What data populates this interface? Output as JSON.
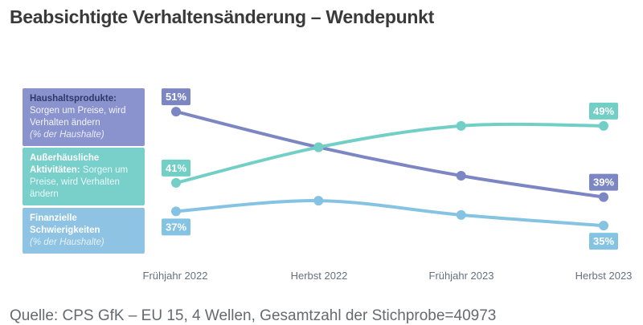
{
  "page": {
    "title": "Beabsichtigte Verhaltensänderung – Wendepunkt"
  },
  "legend": {
    "items": [
      {
        "title": "Haushaltsprodukte:",
        "body": "Sorgen um Preise, wird Verhalten ändern",
        "note": "(% der Haushalte)",
        "bg": "#8a93cd",
        "title_color": "#2e3a6b",
        "text_color": "#f2f4fb"
      },
      {
        "title": "Außerhäusliche Aktivitäten:",
        "body": "Sorgen um Preise, wird Verhalten ändern",
        "note": "",
        "bg": "#79cfca",
        "title_color": "#ffffff",
        "text_color": "#eafaf9"
      },
      {
        "title": "Finanzielle Schwierigkeiten",
        "body": "",
        "note": "(% der Haushalte)",
        "bg": "#8fc3e3",
        "title_color": "#ffffff",
        "text_color": "#eef7fc"
      }
    ]
  },
  "chart_data": {
    "type": "line",
    "title": "Beabsichtigte Verhaltensänderung – Wendepunkt",
    "categories": [
      "Frühjahr 2022",
      "Herbst 2022",
      "Frühjahr 2023",
      "Herbst 2023"
    ],
    "unit": "%",
    "ylim": [
      30,
      55
    ],
    "grid": false,
    "legend_position": "left",
    "series": [
      {
        "name": "Haushaltsprodukte: Sorgen um Preise, wird Verhalten ändern (% der Haushalte)",
        "color": "#7b86c3",
        "values": [
          51,
          46,
          42,
          39
        ],
        "point_labels": [
          {
            "index": 0,
            "text": "51%",
            "position": "above"
          },
          {
            "index": 3,
            "text": "39%",
            "position": "above"
          }
        ]
      },
      {
        "name": "Außerhäusliche Aktivitäten: Sorgen um Preise, wird Verhalten ändern",
        "color": "#72cfc6",
        "values": [
          41,
          46,
          49,
          49
        ],
        "point_labels": [
          {
            "index": 0,
            "text": "41%",
            "position": "above"
          },
          {
            "index": 3,
            "text": "49%",
            "position": "above"
          }
        ]
      },
      {
        "name": "Finanzielle Schwierigkeiten (% der Haushalte)",
        "color": "#85c3e2",
        "values": [
          37,
          38.5,
          36.5,
          35
        ],
        "point_labels": [
          {
            "index": 0,
            "text": "37%",
            "position": "below"
          },
          {
            "index": 3,
            "text": "35%",
            "position": "below"
          }
        ]
      }
    ]
  },
  "source": {
    "text": "Quelle: CPS GfK – EU 15, 4 Wellen, Gesamtzahl der Stichprobe=40973"
  }
}
